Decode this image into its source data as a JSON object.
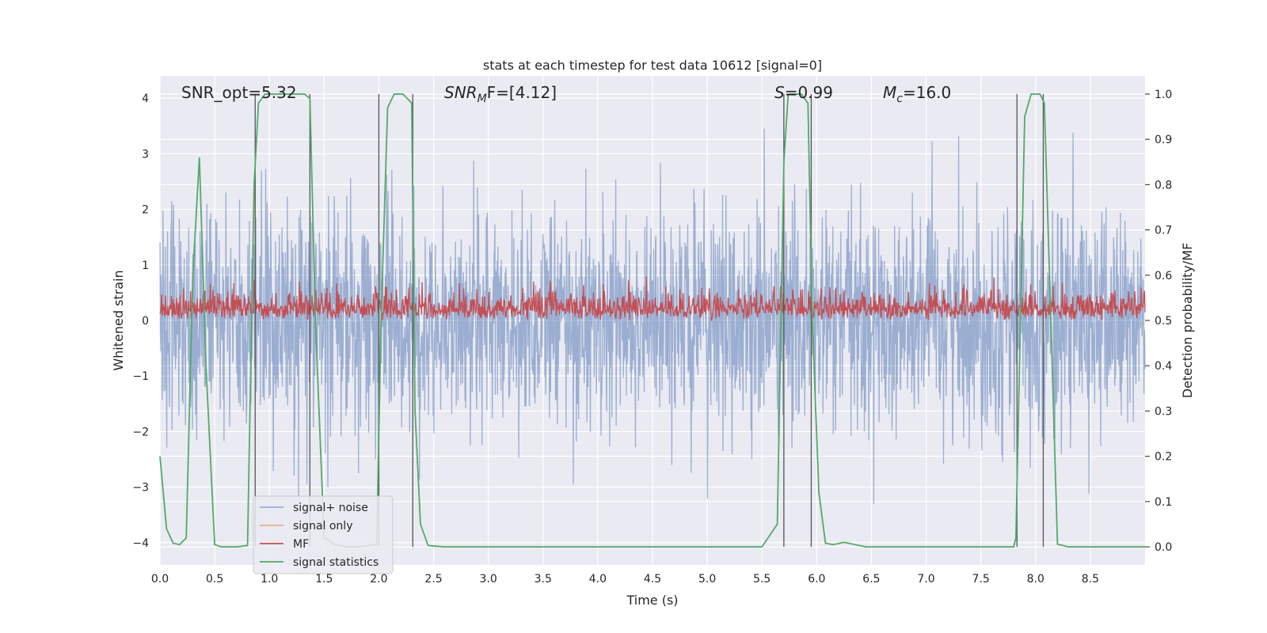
{
  "chart_data": {
    "type": "line",
    "title": "stats at each timestep for test data 10612 [signal=0]",
    "xlabel": "Time (s)",
    "ylabel_left": "Whitened strain",
    "ylabel_right": "Detection probability/MF",
    "xlim": [
      0.0,
      9.0
    ],
    "ylim_left": [
      -4.4,
      4.4
    ],
    "ylim_right": [
      -0.04,
      1.04
    ],
    "xticks": [
      "0.0",
      "0.5",
      "1.0",
      "1.5",
      "2.0",
      "2.5",
      "3.0",
      "3.5",
      "4.0",
      "4.5",
      "5.0",
      "5.5",
      "6.0",
      "6.5",
      "7.0",
      "7.5",
      "8.0",
      "8.5"
    ],
    "xtick_values": [
      0.0,
      0.5,
      1.0,
      1.5,
      2.0,
      2.5,
      3.0,
      3.5,
      4.0,
      4.5,
      5.0,
      5.5,
      6.0,
      6.5,
      7.0,
      7.5,
      8.0,
      8.5
    ],
    "yticks_left": [
      "−4",
      "−3",
      "−2",
      "−1",
      "0",
      "1",
      "2",
      "3",
      "4"
    ],
    "ytick_left_values": [
      -4,
      -3,
      -2,
      -1,
      0,
      1,
      2,
      3,
      4
    ],
    "yticks_right": [
      "0.0",
      "0.1",
      "0.2",
      "0.3",
      "0.4",
      "0.5",
      "0.6",
      "0.7",
      "0.8",
      "0.9",
      "1.0"
    ],
    "ytick_right_values": [
      0.0,
      0.1,
      0.2,
      0.3,
      0.4,
      0.5,
      0.6,
      0.7,
      0.8,
      0.9,
      1.0
    ],
    "grid": true,
    "annotations": {
      "snr_opt": "SNR_opt=5.32",
      "snr_mf_symbol": "SNR",
      "snr_mf_sub": "M",
      "snr_mf_rest": "F=[4.12]",
      "s_symbol": "S",
      "s_rest": "=0.99",
      "mc_symbol": "M",
      "mc_sub": "c",
      "mc_rest": "=16.0"
    },
    "legend": {
      "placement": "lower-left",
      "entries": [
        {
          "label": "signal+ noise",
          "color": "#4C72B0"
        },
        {
          "label": "signal only",
          "color": "#DD8452"
        },
        {
          "label": "MF",
          "color": "#C44E52"
        },
        {
          "label": "signal statistics",
          "color": "#55A868"
        }
      ]
    },
    "vertical_markers": [
      0.87,
      1.37,
      2.0,
      2.31,
      5.7,
      5.95,
      7.83,
      8.07
    ],
    "series": [
      {
        "name": "signal statistics",
        "axis": "right",
        "color": "#55A868",
        "x": [
          0.0,
          0.06,
          0.12,
          0.18,
          0.24,
          0.3,
          0.36,
          0.42,
          0.5,
          0.56,
          0.62,
          0.7,
          0.8,
          0.86,
          0.9,
          0.96,
          1.05,
          1.2,
          1.32,
          1.37,
          1.42,
          1.5,
          1.6,
          1.7,
          1.8,
          1.98,
          2.02,
          2.08,
          2.14,
          2.22,
          2.3,
          2.33,
          2.38,
          2.45,
          2.6,
          3.0,
          4.0,
          5.0,
          5.5,
          5.64,
          5.7,
          5.74,
          5.8,
          5.86,
          5.92,
          5.96,
          6.02,
          6.08,
          6.15,
          6.25,
          6.45,
          6.8,
          7.0,
          7.5,
          7.8,
          7.82,
          7.9,
          7.96,
          8.04,
          8.08,
          8.14,
          8.2,
          8.3,
          8.6,
          9.0
        ],
        "y": [
          0.2,
          0.04,
          0.008,
          0.005,
          0.02,
          0.6,
          0.86,
          0.4,
          0.005,
          0.0,
          0.0,
          0.0,
          0.003,
          0.8,
          0.98,
          1.0,
          1.0,
          1.0,
          1.0,
          0.99,
          0.5,
          0.02,
          0.005,
          0.0,
          0.0,
          0.005,
          0.5,
          0.97,
          1.0,
          1.0,
          0.98,
          0.3,
          0.05,
          0.003,
          0.0,
          0.0,
          0.0,
          0.0,
          0.0,
          0.05,
          0.85,
          1.0,
          1.0,
          1.0,
          0.98,
          0.5,
          0.12,
          0.008,
          0.005,
          0.01,
          0.0,
          0.0,
          0.0,
          0.0,
          0.0,
          0.02,
          0.95,
          1.0,
          1.0,
          0.98,
          0.5,
          0.006,
          0.0,
          0.0,
          0.0
        ]
      }
    ],
    "noise_series": {
      "name": "signal+ noise",
      "axis": "left",
      "color": "#4C72B0",
      "description_values": {
        "typical_amplitude": 1.6,
        "max": 3.45,
        "min": -4.05
      }
    },
    "mf_series": {
      "name": "MF",
      "axis": "right",
      "color": "#C44E52",
      "description_values": {
        "baseline": 0.5,
        "typical_max": 0.58,
        "max": 0.62
      }
    }
  }
}
